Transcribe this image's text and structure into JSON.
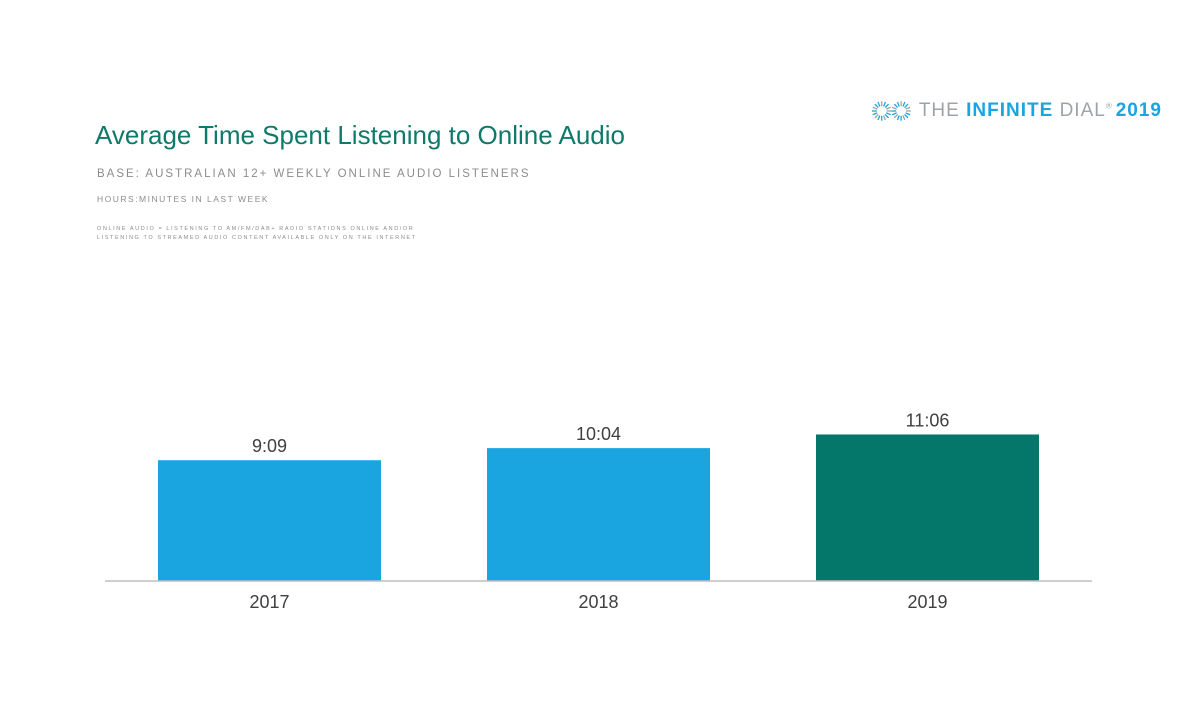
{
  "brand": {
    "the": "THE",
    "infinite": "INFINITE",
    "dial": "DIAL",
    "registered": "®",
    "year": "2019",
    "colors": {
      "blue": "#1aa5e0",
      "gray": "#9ea3a8"
    },
    "icon": "infinity-logo-icon"
  },
  "header": {
    "title": "Average Time Spent Listening to Online Audio",
    "base": "BASE: AUSTRALIAN 12+ WEEKLY ONLINE AUDIO LISTENERS",
    "hours": "HOURS:MINUTES IN LAST WEEK",
    "note_line1": "ONLINE AUDIO = LISTENING TO AM/FM/DAB+ RADIO STATIONS ONLINE AND/OR",
    "note_line2": "LISTENING TO STREAMED AUDIO CONTENT AVAILABLE ONLY ON THE INTERNET"
  },
  "chart_data": {
    "type": "bar",
    "categories": [
      "2017",
      "2018",
      "2019"
    ],
    "values": [
      549,
      604,
      666
    ],
    "value_labels": [
      "9:09",
      "10:04",
      "11:06"
    ],
    "colors": [
      "#1aa5e0",
      "#1aa5e0",
      "#04766a"
    ],
    "title": "Average Time Spent Listening to Online Audio",
    "xlabel": "",
    "ylabel": "",
    "ylim": [
      0,
      800
    ],
    "grid": false
  }
}
